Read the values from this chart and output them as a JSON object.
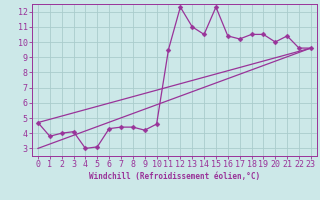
{
  "xlabel": "Windchill (Refroidissement éolien,°C)",
  "background_color": "#cce8e8",
  "grid_color": "#aacccc",
  "line_color": "#993399",
  "spine_color": "#993399",
  "xlim": [
    -0.5,
    23.5
  ],
  "ylim": [
    2.5,
    12.5
  ],
  "xticks": [
    0,
    1,
    2,
    3,
    4,
    5,
    6,
    7,
    8,
    9,
    10,
    11,
    12,
    13,
    14,
    15,
    16,
    17,
    18,
    19,
    20,
    21,
    22,
    23
  ],
  "yticks": [
    3,
    4,
    5,
    6,
    7,
    8,
    9,
    10,
    11,
    12
  ],
  "line1_x": [
    0,
    1,
    2,
    3,
    4,
    5,
    6,
    7,
    8,
    9,
    10,
    11,
    12,
    13,
    14,
    15,
    16,
    17,
    18,
    19,
    20,
    21,
    22,
    23
  ],
  "line1_y": [
    4.7,
    3.8,
    4.0,
    4.1,
    3.0,
    3.1,
    4.3,
    4.4,
    4.4,
    4.2,
    4.6,
    9.5,
    12.3,
    11.0,
    10.5,
    12.3,
    10.4,
    10.2,
    10.5,
    10.5,
    10.0,
    10.4,
    9.6,
    9.6
  ],
  "line2_x": [
    0,
    23
  ],
  "line2_y": [
    4.7,
    9.6
  ],
  "line3_x": [
    0,
    23
  ],
  "line3_y": [
    3.0,
    9.6
  ],
  "tick_fontsize": 6,
  "xlabel_fontsize": 5.5,
  "marker_size": 2.5,
  "linewidth": 0.9
}
